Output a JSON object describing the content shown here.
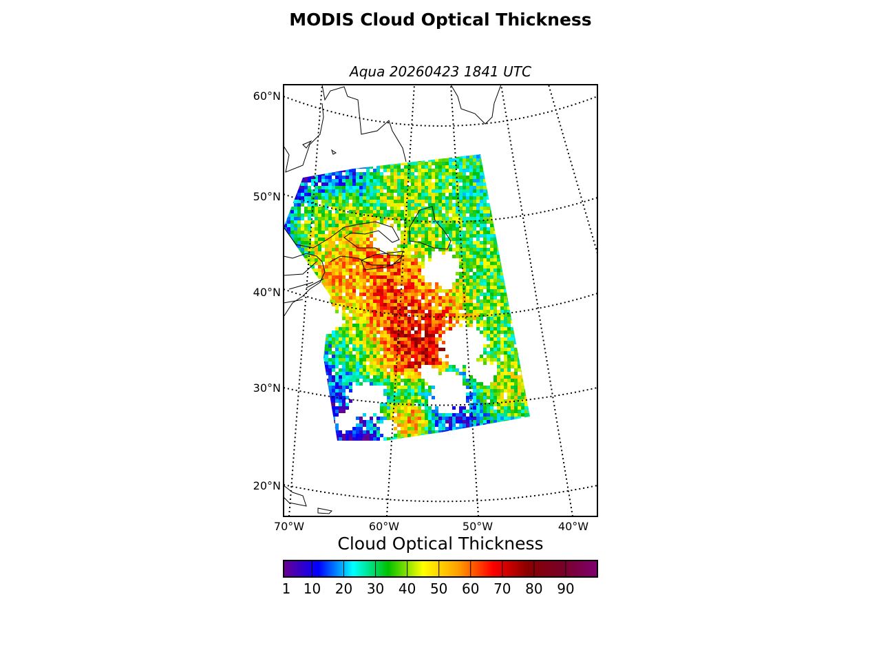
{
  "title": "MODIS Cloud Optical Thickness",
  "subtitle": "Aqua 20260423 1841 UTC",
  "map": {
    "projection": "lambert-conformal",
    "graticule_style": "dotted",
    "lat_labels": [
      "60°N",
      "50°N",
      "40°N",
      "30°N",
      "20°N"
    ],
    "lon_labels": [
      "70°W",
      "60°W",
      "50°W",
      "40°W"
    ]
  },
  "colorbar": {
    "label": "Cloud Optical Thickness",
    "range": [
      1,
      100
    ],
    "ticks": [
      1,
      10,
      20,
      30,
      40,
      50,
      60,
      70,
      80,
      90
    ],
    "tick_labels": [
      "1",
      "10",
      "20",
      "30",
      "40",
      "50",
      "60",
      "70",
      "80",
      "90"
    ],
    "colors": [
      "#6a0090",
      "#0000ff",
      "#00ffff",
      "#00c000",
      "#ffff00",
      "#ffa000",
      "#ff0000",
      "#8a0000",
      "#780028",
      "#800070"
    ]
  }
}
